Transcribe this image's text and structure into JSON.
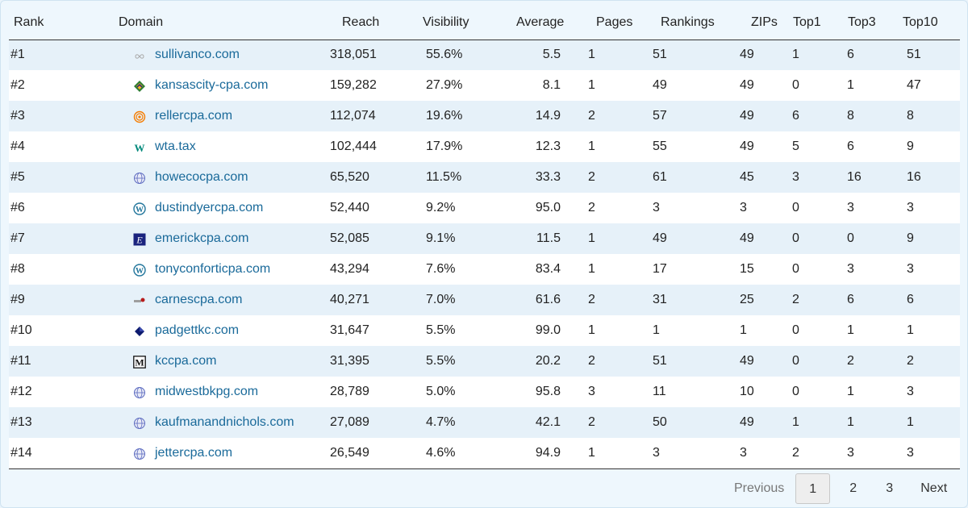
{
  "columns": {
    "rank": "Rank",
    "domain": "Domain",
    "reach": "Reach",
    "visibility": "Visibility",
    "average": "Average",
    "pages": "Pages",
    "rankings": "Rankings",
    "zips": "ZIPs",
    "top1": "Top1",
    "top3": "Top3",
    "top10": "Top10"
  },
  "rows": [
    {
      "rank": "#1",
      "icon": "infinity-logo-icon",
      "domain": "sullivanco.com",
      "reach": "318,051",
      "visibility": "55.6%",
      "average": "5.5",
      "pages": "1",
      "rankings": "51",
      "zips": "49",
      "top1": "1",
      "top3": "6",
      "top10": "51"
    },
    {
      "rank": "#2",
      "icon": "kansas-cpa-logo-icon",
      "domain": "kansascity-cpa.com",
      "reach": "159,282",
      "visibility": "27.9%",
      "average": "8.1",
      "pages": "1",
      "rankings": "49",
      "zips": "49",
      "top1": "0",
      "top3": "1",
      "top10": "47"
    },
    {
      "rank": "#3",
      "icon": "reller-logo-icon",
      "domain": "rellercpa.com",
      "reach": "112,074",
      "visibility": "19.6%",
      "average": "14.9",
      "pages": "2",
      "rankings": "57",
      "zips": "49",
      "top1": "6",
      "top3": "8",
      "top10": "8"
    },
    {
      "rank": "#4",
      "icon": "wta-logo-icon",
      "domain": "wta.tax",
      "reach": "102,444",
      "visibility": "17.9%",
      "average": "12.3",
      "pages": "1",
      "rankings": "55",
      "zips": "49",
      "top1": "5",
      "top3": "6",
      "top10": "9"
    },
    {
      "rank": "#5",
      "icon": "globe-icon",
      "domain": "howecocpa.com",
      "reach": "65,520",
      "visibility": "11.5%",
      "average": "33.3",
      "pages": "2",
      "rankings": "61",
      "zips": "45",
      "top1": "3",
      "top3": "16",
      "top10": "16"
    },
    {
      "rank": "#6",
      "icon": "wordpress-icon",
      "domain": "dustindyercpa.com",
      "reach": "52,440",
      "visibility": "9.2%",
      "average": "95.0",
      "pages": "2",
      "rankings": "3",
      "zips": "3",
      "top1": "0",
      "top3": "3",
      "top10": "3"
    },
    {
      "rank": "#7",
      "icon": "emerick-logo-icon",
      "domain": "emerickcpa.com",
      "reach": "52,085",
      "visibility": "9.1%",
      "average": "11.5",
      "pages": "1",
      "rankings": "49",
      "zips": "49",
      "top1": "0",
      "top3": "0",
      "top10": "9"
    },
    {
      "rank": "#8",
      "icon": "wordpress-icon",
      "domain": "tonyconforticpa.com",
      "reach": "43,294",
      "visibility": "7.6%",
      "average": "83.4",
      "pages": "1",
      "rankings": "17",
      "zips": "15",
      "top1": "0",
      "top3": "3",
      "top10": "3"
    },
    {
      "rank": "#9",
      "icon": "carnes-logo-icon",
      "domain": "carnescpa.com",
      "reach": "40,271",
      "visibility": "7.0%",
      "average": "61.6",
      "pages": "2",
      "rankings": "31",
      "zips": "25",
      "top1": "2",
      "top3": "6",
      "top10": "6"
    },
    {
      "rank": "#10",
      "icon": "diamond-logo-icon",
      "domain": "padgettkc.com",
      "reach": "31,647",
      "visibility": "5.5%",
      "average": "99.0",
      "pages": "1",
      "rankings": "1",
      "zips": "1",
      "top1": "0",
      "top3": "1",
      "top10": "1"
    },
    {
      "rank": "#11",
      "icon": "m-logo-icon",
      "domain": "kccpa.com",
      "reach": "31,395",
      "visibility": "5.5%",
      "average": "20.2",
      "pages": "2",
      "rankings": "51",
      "zips": "49",
      "top1": "0",
      "top3": "2",
      "top10": "2"
    },
    {
      "rank": "#12",
      "icon": "globe-icon",
      "domain": "midwestbkpg.com",
      "reach": "28,789",
      "visibility": "5.0%",
      "average": "95.8",
      "pages": "3",
      "rankings": "11",
      "zips": "10",
      "top1": "0",
      "top3": "1",
      "top10": "3"
    },
    {
      "rank": "#13",
      "icon": "globe-icon",
      "domain": "kaufmanandnichols.com",
      "reach": "27,089",
      "visibility": "4.7%",
      "average": "42.1",
      "pages": "2",
      "rankings": "50",
      "zips": "49",
      "top1": "1",
      "top3": "1",
      "top10": "1"
    },
    {
      "rank": "#14",
      "icon": "globe-icon",
      "domain": "jettercpa.com",
      "reach": "26,549",
      "visibility": "4.6%",
      "average": "94.9",
      "pages": "1",
      "rankings": "3",
      "zips": "3",
      "top1": "2",
      "top3": "3",
      "top10": "3"
    }
  ],
  "pagination": {
    "previous": "Previous",
    "pages": [
      "1",
      "2",
      "3"
    ],
    "current": "1",
    "next": "Next"
  }
}
